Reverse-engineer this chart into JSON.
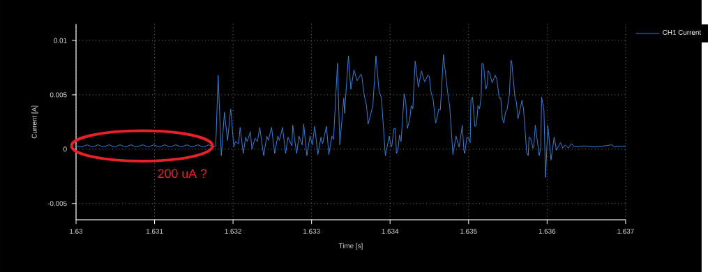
{
  "chart_data": {
    "type": "line",
    "xlabel": "Time [s]",
    "ylabel": "Current [A]",
    "xlim": [
      1.63,
      1.637
    ],
    "ylim": [
      -0.0065,
      0.0115
    ],
    "xticks": [
      1.63,
      1.631,
      1.632,
      1.633,
      1.634,
      1.635,
      1.636,
      1.637
    ],
    "yticks": [
      -0.005,
      0,
      0.005,
      0.01
    ],
    "grid": true,
    "legend": "top right",
    "marker": "none",
    "line_style": "solid",
    "annotations": [
      {
        "text": "200 uA ?",
        "x": 1.63084,
        "y": 0.0003
      }
    ],
    "x": [
      1.63,
      1.63007,
      1.63014,
      1.63021,
      1.63028,
      1.63035,
      1.63042,
      1.63049,
      1.63056,
      1.63063,
      1.6307,
      1.63077,
      1.63085,
      1.63092,
      1.63099,
      1.63106,
      1.63113,
      1.6312,
      1.63127,
      1.63134,
      1.63141,
      1.63148,
      1.63155,
      1.63162,
      1.63169,
      1.63176,
      1.63178,
      1.63181,
      1.63185,
      1.63189,
      1.63193,
      1.63197,
      1.63201,
      1.63203,
      1.63207,
      1.63209,
      1.63213,
      1.63216,
      1.63218,
      1.63222,
      1.63224,
      1.63228,
      1.63231,
      1.63234,
      1.63239,
      1.63243,
      1.63245,
      1.63249,
      1.63253,
      1.63257,
      1.63259,
      1.63263,
      1.63267,
      1.6327,
      1.63275,
      1.63276,
      1.63281,
      1.63284,
      1.63288,
      1.6329,
      1.63294,
      1.63298,
      1.63301,
      1.63304,
      1.63308,
      1.63312,
      1.63314,
      1.63319,
      1.63322,
      1.63326,
      1.63328,
      1.63333,
      1.63336,
      1.63341,
      1.63342,
      1.63347,
      1.6335,
      1.63354,
      1.63358,
      1.63363,
      1.63364,
      1.63367,
      1.6337,
      1.63372,
      1.63377,
      1.63378,
      1.63382,
      1.63386,
      1.63389,
      1.63394,
      1.63399,
      1.63401,
      1.63402,
      1.63405,
      1.63407,
      1.63408,
      1.6341,
      1.63412,
      1.63414,
      1.63418,
      1.6342,
      1.63422,
      1.63425,
      1.63427,
      1.63429,
      1.63432,
      1.63436,
      1.6344,
      1.63444,
      1.63448,
      1.6345,
      1.63452,
      1.63455,
      1.63458,
      1.63459,
      1.63462,
      1.63464,
      1.63468,
      1.63473,
      1.63476,
      1.6348,
      1.63484,
      1.63488,
      1.63492,
      1.63494,
      1.63495,
      1.63498,
      1.635,
      1.63502,
      1.63503,
      1.63505,
      1.63508,
      1.6351,
      1.63512,
      1.63514,
      1.63516,
      1.63517,
      1.63519,
      1.63522,
      1.63524,
      1.63525,
      1.63527,
      1.6353,
      1.63534,
      1.63536,
      1.63539,
      1.63541,
      1.63543,
      1.63545,
      1.63547,
      1.63549,
      1.63552,
      1.63554,
      1.63555,
      1.63559,
      1.63561,
      1.63563,
      1.63568,
      1.6357,
      1.63574,
      1.63576,
      1.63577,
      1.63579,
      1.63582,
      1.63583,
      1.63585,
      1.6359,
      1.63592,
      1.63593,
      1.63596,
      1.63598,
      1.63601,
      1.63605,
      1.63609,
      1.63612,
      1.63617,
      1.6362,
      1.63623,
      1.63627,
      1.63631,
      1.63635,
      1.63647,
      1.6366,
      1.63673,
      1.63682,
      1.63686,
      1.637
    ],
    "series": [
      {
        "name": "CH1 Current",
        "color": "#3c7fd6",
        "values": [
          0.0003,
          0.0002,
          0.0004,
          0.0002,
          0.0004,
          0.0002,
          0.0004,
          0.0002,
          0.0004,
          0.0002,
          0.0004,
          0.0002,
          0.0004,
          0.0002,
          0.0004,
          0.0002,
          0.0004,
          0.0002,
          0.0004,
          0.0002,
          0.0004,
          0.0002,
          0.0004,
          0.0002,
          0.0004,
          0.0002,
          0.0003,
          0.0068,
          -0.0006,
          0.0034,
          0.0008,
          0.0037,
          0.0002,
          0.0007,
          0.0005,
          0.002,
          -0.0004,
          0.0011,
          0.0007,
          0.0016,
          0.0,
          0.001,
          0.0007,
          0.002,
          -0.0006,
          0.0012,
          0.0008,
          0.002,
          -0.0004,
          0.0012,
          0.0008,
          0.002,
          -0.0004,
          0.0011,
          0.0003,
          0.0022,
          -0.0004,
          0.0012,
          0.0004,
          0.0023,
          -0.0006,
          0.0012,
          0.0004,
          0.0021,
          -0.0005,
          0.0011,
          0.0005,
          0.0021,
          -0.0005,
          0.0012,
          0.0009,
          0.0079,
          0.0004,
          0.0047,
          0.0033,
          0.0086,
          0.0055,
          0.0073,
          0.0063,
          0.0069,
          0.0067,
          0.005,
          0.004,
          0.0023,
          0.0037,
          0.0039,
          0.0086,
          0.0053,
          0.0047,
          -0.0006,
          0.0012,
          0.0003,
          0.0002,
          0.0019,
          0.0019,
          -0.0004,
          -0.0001,
          0.0013,
          0.0007,
          0.0051,
          0.0043,
          0.0019,
          0.0027,
          0.004,
          0.0037,
          0.0081,
          0.0057,
          0.0072,
          0.0062,
          0.0068,
          0.0067,
          0.0053,
          0.0045,
          0.0024,
          0.0026,
          0.0037,
          0.0036,
          0.0087,
          0.0054,
          0.0039,
          -0.0005,
          0.0012,
          0.0002,
          0.0022,
          -0.0001,
          -0.0004,
          0.0011,
          0.001,
          0.0006,
          0.0045,
          0.0048,
          0.0021,
          0.0022,
          0.004,
          0.0037,
          0.0048,
          0.0079,
          0.0078,
          0.0055,
          0.006,
          0.0072,
          0.007,
          0.0061,
          0.0068,
          0.0064,
          0.0047,
          0.0047,
          0.0028,
          0.0024,
          0.0034,
          0.0036,
          0.0051,
          0.0082,
          0.008,
          0.0048,
          0.0043,
          0.0028,
          0.0045,
          0.0037,
          -0.0003,
          -0.0006,
          0.0011,
          0.001,
          0.0001,
          0.0002,
          0.0022,
          -0.0006,
          0.0002,
          0.0048,
          0.0036,
          -0.0026,
          0.0022,
          -0.001,
          0.0011,
          -0.0001,
          0.0006,
          0.0001,
          0.0004,
          0.0001,
          0.0005,
          0.0002,
          0.0003,
          0.0002,
          0.0003,
          0.0004,
          0.0002,
          0.0003
        ]
      }
    ]
  }
}
